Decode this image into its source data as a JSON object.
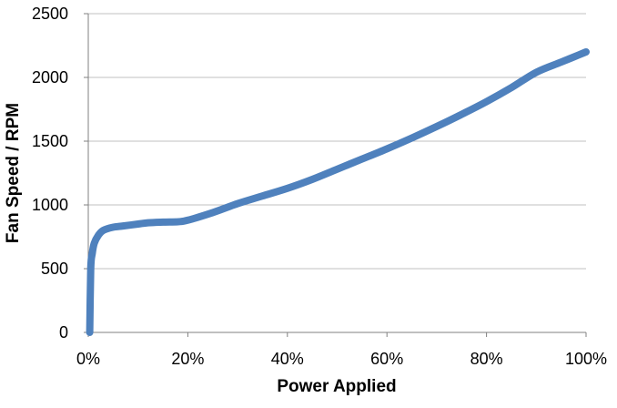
{
  "chart_data": {
    "type": "line",
    "title": "",
    "xlabel": "Power Applied",
    "ylabel": "Fan Speed / RPM",
    "xlim": [
      0,
      1
    ],
    "ylim": [
      0,
      2500
    ],
    "x_ticks": [
      "0%",
      "20%",
      "40%",
      "60%",
      "80%",
      "100%"
    ],
    "x_tick_values": [
      0,
      0.2,
      0.4,
      0.6,
      0.8,
      1.0
    ],
    "y_ticks": [
      "0",
      "500",
      "1000",
      "1500",
      "2000",
      "2500"
    ],
    "y_tick_values": [
      0,
      500,
      1000,
      1500,
      2000,
      2500
    ],
    "grid": "horizontal",
    "legend": "none",
    "series": [
      {
        "color": "#4F81BD",
        "x": [
          0.003,
          0.005,
          0.008,
          0.012,
          0.02,
          0.03,
          0.05,
          0.07,
          0.1,
          0.12,
          0.15,
          0.18,
          0.2,
          0.25,
          0.3,
          0.35,
          0.4,
          0.45,
          0.5,
          0.55,
          0.6,
          0.65,
          0.7,
          0.75,
          0.8,
          0.85,
          0.9,
          0.95,
          1.0
        ],
        "y": [
          0,
          500,
          620,
          700,
          760,
          800,
          825,
          835,
          850,
          860,
          865,
          868,
          880,
          940,
          1010,
          1070,
          1130,
          1200,
          1280,
          1360,
          1440,
          1525,
          1615,
          1710,
          1810,
          1920,
          2040,
          2120,
          2200
        ]
      }
    ]
  }
}
